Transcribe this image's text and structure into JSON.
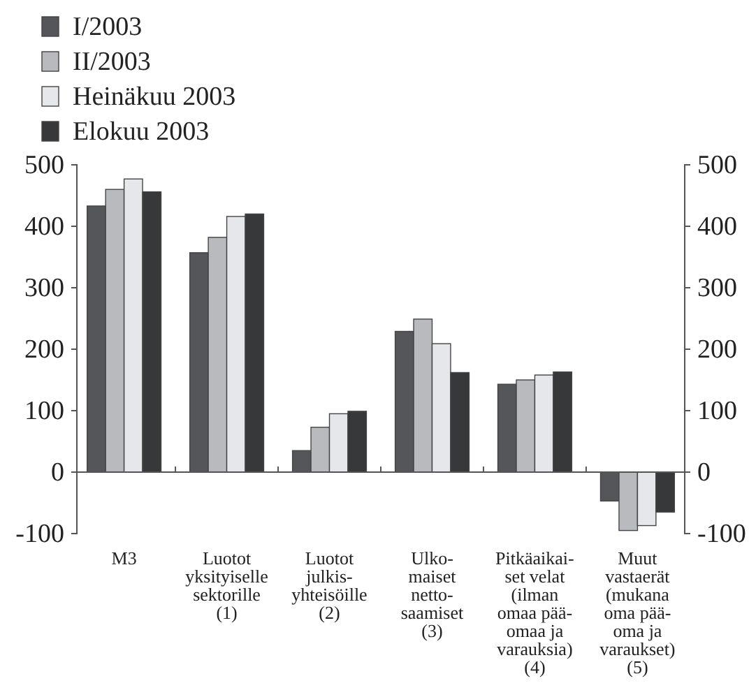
{
  "chart_data": {
    "type": "bar",
    "categories": [
      "M3",
      "Luotot\nyksityiselle\nsektorille\n(1)",
      "Luotot\njulkis-\nyhteisöille\n(2)",
      "Ulko-\nmaiset\nnetto-\nsaamiset\n(3)",
      "Pitkäaikai-\nset velat\n(ilman\nomaa pää-\nomaa ja\nvarauksia)\n(4)",
      "Muut\nvastaerät\n(mukana\noma pää-\noma ja\nvaraukset)\n(5)"
    ],
    "series": [
      {
        "name": "I/2003",
        "color": "#55565a",
        "values": [
          433,
          357,
          35,
          229,
          143,
          -47
        ]
      },
      {
        "name": "II/2003",
        "color": "#b8babd",
        "values": [
          460,
          382,
          73,
          249,
          150,
          -95
        ]
      },
      {
        "name": "Heinäkuu 2003",
        "color": "#e6e7ea",
        "values": [
          477,
          416,
          95,
          209,
          158,
          -87
        ]
      },
      {
        "name": "Elokuu 2003",
        "color": "#37383a",
        "values": [
          456,
          420,
          99,
          162,
          163,
          -65
        ]
      }
    ],
    "ylim": [
      -100,
      500
    ],
    "yticks": [
      -100,
      0,
      100,
      200,
      300,
      400,
      500
    ],
    "y2lim": [
      -100,
      500
    ],
    "y2ticks": [
      -100,
      0,
      100,
      200,
      300,
      400,
      500
    ],
    "legend": "top left"
  }
}
